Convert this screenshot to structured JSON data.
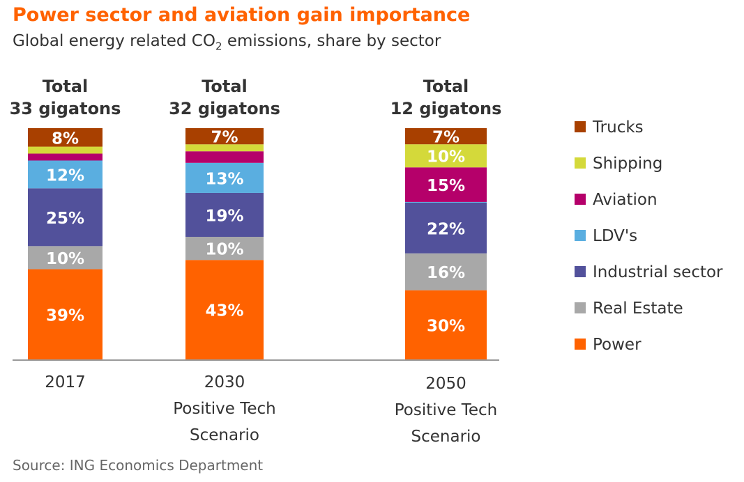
{
  "header": {
    "title": "Power sector and aviation gain importance",
    "subtitle_main": "Global energy related CO",
    "subtitle_sub": "2",
    "subtitle_rest": " emissions, share by sector"
  },
  "source": "Source: ING Economics Department",
  "colors": {
    "Power": "#ff6200",
    "Real Estate": "#a8a8a8",
    "Industrial sector": "#52519b",
    "LDV's": "#5aaee0",
    "Aviation": "#b5006a",
    "Shipping": "#d4d93a",
    "Trucks": "#a84000"
  },
  "chart_data": {
    "type": "bar",
    "stacked": true,
    "categories": [
      "2017",
      "2030 Positive Tech Scenario",
      "2050 Positive Tech Scenario"
    ],
    "category_lines": [
      [
        "2017"
      ],
      [
        "2030",
        "Positive Tech",
        "Scenario"
      ],
      [
        "2050",
        "Positive Tech",
        "Scenario"
      ]
    ],
    "totals": [
      [
        "Total",
        "33 gigatons"
      ],
      [
        "Total",
        "32 gigatons"
      ],
      [
        "Total",
        "12 gigatons"
      ]
    ],
    "series": [
      {
        "name": "Power",
        "values": [
          39,
          43,
          30
        ],
        "labels": [
          "39%",
          "43%",
          "30%"
        ]
      },
      {
        "name": "Real Estate",
        "values": [
          10,
          10,
          16
        ],
        "labels": [
          "10%",
          "10%",
          "16%"
        ]
      },
      {
        "name": "Industrial sector",
        "values": [
          25,
          19,
          22
        ],
        "labels": [
          "25%",
          "19%",
          "22%"
        ]
      },
      {
        "name": "LDV's",
        "values": [
          12,
          13,
          0.3
        ],
        "labels": [
          "12%",
          "13%",
          ""
        ]
      },
      {
        "name": "Aviation",
        "values": [
          3,
          5,
          15
        ],
        "labels": [
          "",
          "",
          "15%"
        ]
      },
      {
        "name": "Shipping",
        "values": [
          3,
          3,
          10
        ],
        "labels": [
          "",
          "",
          "10%"
        ]
      },
      {
        "name": "Trucks",
        "values": [
          8,
          7,
          7
        ],
        "labels": [
          "8%",
          "7%",
          "7%"
        ]
      }
    ],
    "legend_order": [
      "Trucks",
      "Shipping",
      "Aviation",
      "LDV's",
      "Industrial sector",
      "Real Estate",
      "Power"
    ],
    "legend_position": "right",
    "grid": false,
    "ylim": [
      0,
      100
    ]
  }
}
